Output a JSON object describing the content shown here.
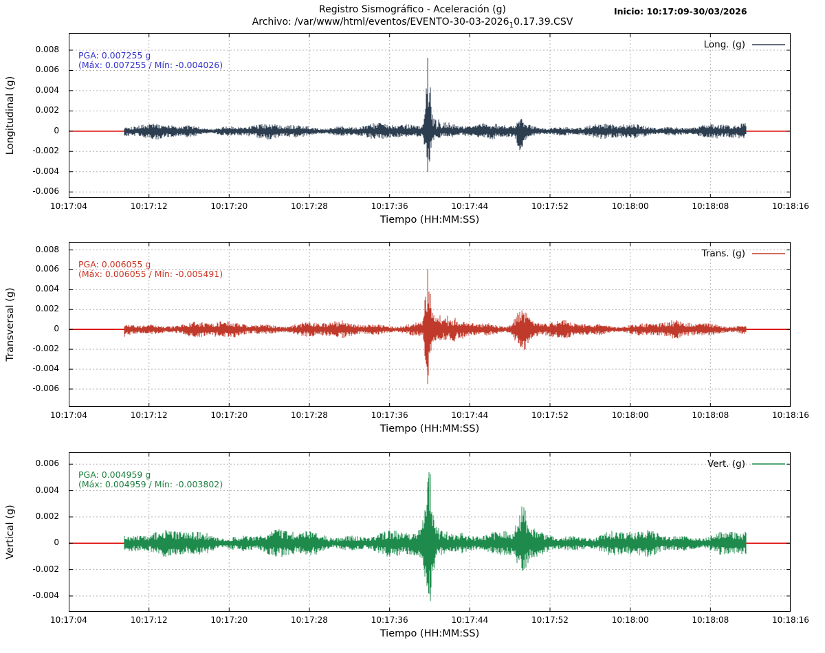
{
  "header": {
    "title": "Registro Sismográfico - Aceleración (g)",
    "file_prefix": "Archivo: /var/www/html/eventos/EVENTO-30-03-2026",
    "file_subscript": "1",
    "file_suffix": "0.17.39.CSV",
    "start_label": "Inicio: 10:17:09-30/03/2026"
  },
  "axes": {
    "x_label": "Tiempo (HH:MM:SS)",
    "x_ticks": [
      "10:17:04",
      "10:17:12",
      "10:17:20",
      "10:17:28",
      "10:17:36",
      "10:17:44",
      "10:17:52",
      "10:18:00",
      "10:18:08",
      "10:18:16"
    ],
    "x_range_s": [
      0,
      72
    ],
    "x_tick_step_s": 8,
    "grid_color": "#b0b0b0",
    "zero_line_color": "#dd0000",
    "border_color": "#000000",
    "background": "#ffffff"
  },
  "chart_data": [
    {
      "type": "line",
      "name": "longitudinal",
      "axis_label": "Longitudinal (g)",
      "legend": "Long. (g)",
      "line_color": "#2d3e50",
      "annotation_color": "#3333cc",
      "pga_line": "PGA: 0.007255 g",
      "minmax_line": "(Máx: 0.007255 / Mín: -0.004026)",
      "pga": 0.007255,
      "max": 0.007255,
      "min": -0.004026,
      "ylim": [
        -0.0066,
        0.0097
      ],
      "y_ticks": [
        0.008,
        0.006,
        0.004,
        0.002,
        0,
        -0.002,
        -0.004,
        -0.006
      ],
      "y_tick_labels": [
        "0.008",
        "0.006",
        "0.004",
        "0.002",
        "0",
        "-0.002",
        "-0.004",
        "-0.006"
      ],
      "signal": {
        "start_s": 5.5,
        "end_s": 67.6,
        "noise_g": 0.00045,
        "seed": 101,
        "events": [
          {
            "t0_s": 35.8,
            "up_g": 0.007255,
            "down_g": 0.004026,
            "width_s": 0.3,
            "coda_s": 1.8
          },
          {
            "t0_s": 45.0,
            "up_g": 0.0008,
            "down_g": 0.0016,
            "width_s": 0.35,
            "coda_s": 0.6
          }
        ]
      }
    },
    {
      "type": "line",
      "name": "transversal",
      "axis_label": "Transversal (g)",
      "legend": "Trans. (g)",
      "line_color": "#c03a2b",
      "annotation_color": "#cc3322",
      "pga_line": "PGA: 0.006055 g",
      "minmax_line": "(Máx: 0.006055 / Mín: -0.005491)",
      "pga": 0.006055,
      "max": 0.006055,
      "min": -0.005491,
      "ylim": [
        -0.0078,
        0.0088
      ],
      "y_ticks": [
        0.008,
        0.006,
        0.004,
        0.002,
        0,
        -0.002,
        -0.004,
        -0.006
      ],
      "y_tick_labels": [
        "0.008",
        "0.006",
        "0.004",
        "0.002",
        "0",
        "-0.002",
        "-0.004",
        "-0.006"
      ],
      "signal": {
        "start_s": 5.5,
        "end_s": 67.6,
        "noise_g": 0.0005,
        "seed": 202,
        "events": [
          {
            "t0_s": 35.8,
            "up_g": 0.006055,
            "down_g": 0.005491,
            "width_s": 0.3,
            "coda_s": 2.2
          },
          {
            "t0_s": 45.2,
            "up_g": 0.0019,
            "down_g": 0.0018,
            "width_s": 0.8,
            "coda_s": 0.8
          }
        ]
      }
    },
    {
      "type": "line",
      "name": "vertical",
      "axis_label": "Vertical (g)",
      "legend": "Vert. (g)",
      "line_color": "#1e8b4d",
      "annotation_color": "#1f8040",
      "pga_line": "PGA: 0.004959 g",
      "minmax_line": "(Máx: 0.004959 / Mín: -0.003802)",
      "pga": 0.004959,
      "max": 0.004959,
      "min": -0.003802,
      "ylim": [
        -0.0052,
        0.0069
      ],
      "y_ticks": [
        0.006,
        0.004,
        0.002,
        0,
        -0.002,
        -0.004
      ],
      "y_tick_labels": [
        "0.006",
        "0.004",
        "0.002",
        "0",
        "-0.002",
        "-0.004"
      ],
      "signal": {
        "start_s": 5.5,
        "end_s": 67.6,
        "noise_g": 0.0006,
        "seed": 303,
        "events": [
          {
            "t0_s": 35.9,
            "up_g": 0.004959,
            "down_g": 0.003802,
            "width_s": 0.5,
            "coda_s": 2.4
          },
          {
            "t0_s": 45.2,
            "up_g": 0.0023,
            "down_g": 0.0016,
            "width_s": 0.55,
            "coda_s": 0.8
          }
        ]
      }
    }
  ]
}
